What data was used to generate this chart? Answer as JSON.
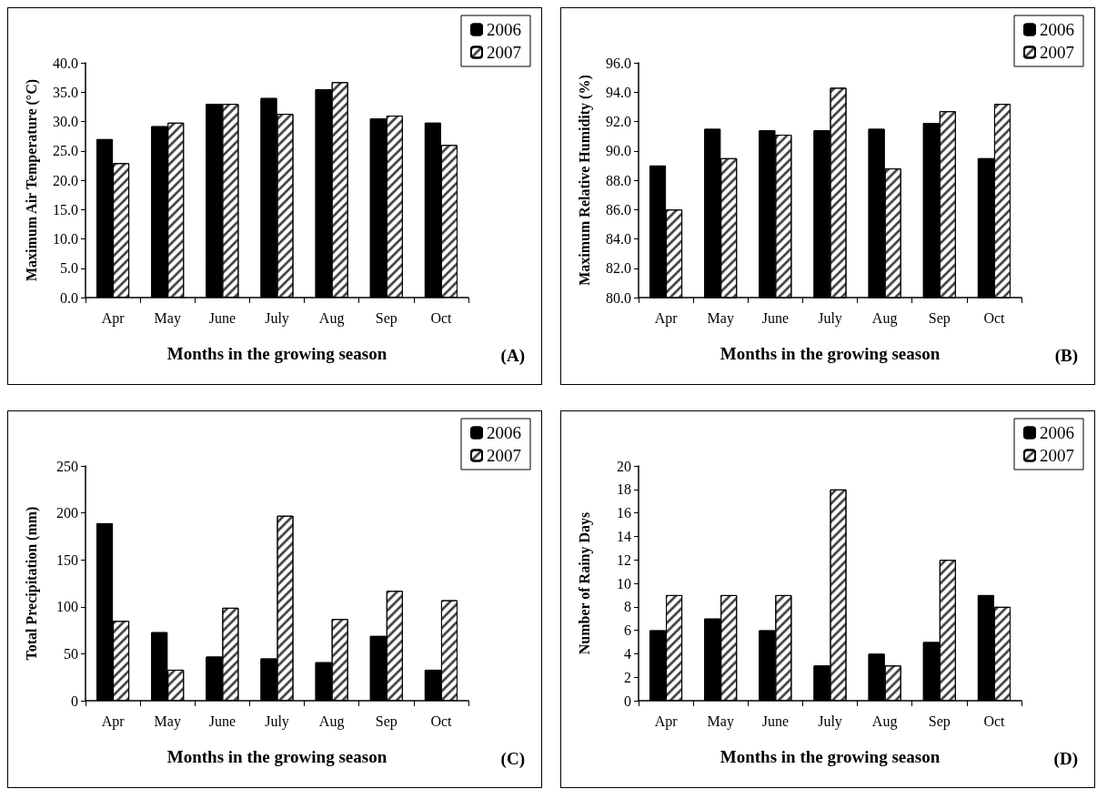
{
  "chart_data": [
    {
      "type": "bar",
      "ylabel": "Maximum Air Temperature (°C)",
      "xlabel": "Months in the growing season",
      "annotations": [
        "(A)"
      ],
      "categories": [
        "Apr",
        "May",
        "June",
        "July",
        "Aug",
        "Sep",
        "Oct"
      ],
      "legend": "top right",
      "grid": false,
      "series": [
        {
          "name": "2006",
          "color": "#000000",
          "values": [
            27.0,
            29.2,
            33.0,
            34.0,
            35.5,
            30.5,
            29.8
          ]
        },
        {
          "name": "2007",
          "color": "#ffffff",
          "values": [
            22.9,
            29.8,
            33.0,
            31.3,
            36.7,
            31.0,
            26.0
          ]
        }
      ],
      "ylim": [
        0,
        40
      ],
      "yticks": [
        {
          "value": 0,
          "label": "0.0"
        },
        {
          "value": 5,
          "label": "5.0"
        },
        {
          "value": 10,
          "label": "10.0"
        },
        {
          "value": 15,
          "label": "15.0"
        },
        {
          "value": 20,
          "label": "20.0"
        },
        {
          "value": 25,
          "label": "25.0"
        },
        {
          "value": 30,
          "label": "30.0"
        },
        {
          "value": 35,
          "label": "35.0"
        },
        {
          "value": 40,
          "label": "40.0"
        }
      ]
    },
    {
      "type": "bar",
      "ylabel": "Maximum Relative Humidity (%)",
      "xlabel": "Months in the growing season",
      "annotations": [
        "(B)"
      ],
      "categories": [
        "Apr",
        "May",
        "June",
        "July",
        "Aug",
        "Sep",
        "Oct"
      ],
      "legend": "top right",
      "grid": false,
      "series": [
        {
          "name": "2006",
          "color": "#000000",
          "values": [
            89.0,
            91.5,
            91.4,
            91.4,
            91.5,
            91.9,
            89.5
          ]
        },
        {
          "name": "2007",
          "color": "#ffffff",
          "values": [
            86.0,
            89.5,
            91.1,
            94.3,
            88.8,
            92.7,
            93.2
          ]
        }
      ],
      "ylim": [
        80,
        96
      ],
      "yticks": [
        {
          "value": 80,
          "label": "80.0"
        },
        {
          "value": 82,
          "label": "82.0"
        },
        {
          "value": 84,
          "label": "84.0"
        },
        {
          "value": 86,
          "label": "86.0"
        },
        {
          "value": 88,
          "label": "88.0"
        },
        {
          "value": 90,
          "label": "90.0"
        },
        {
          "value": 92,
          "label": "92.0"
        },
        {
          "value": 94,
          "label": "94.0"
        },
        {
          "value": 96,
          "label": "96.0"
        }
      ]
    },
    {
      "type": "bar",
      "ylabel": "Total Precipitation (mm)",
      "xlabel": "Months in the growing season",
      "annotations": [
        "(C)"
      ],
      "categories": [
        "Apr",
        "May",
        "June",
        "July",
        "Aug",
        "Sep",
        "Oct"
      ],
      "legend": "top right",
      "grid": false,
      "series": [
        {
          "name": "2006",
          "color": "#000000",
          "values": [
            189,
            73,
            47,
            45,
            41,
            69,
            33
          ]
        },
        {
          "name": "2007",
          "color": "#ffffff",
          "values": [
            85,
            33,
            99,
            197,
            87,
            117,
            107
          ]
        }
      ],
      "ylim": [
        0,
        250
      ],
      "yticks": [
        0,
        50,
        100,
        150,
        200,
        250
      ]
    },
    {
      "type": "bar",
      "ylabel": "Number of Rainy Days",
      "xlabel": "Months in the growing season",
      "annotations": [
        "(D)"
      ],
      "categories": [
        "Apr",
        "May",
        "June",
        "July",
        "Aug",
        "Sep",
        "Oct"
      ],
      "legend": "top right",
      "grid": false,
      "series": [
        {
          "name": "2006",
          "color": "#000000",
          "values": [
            6,
            7,
            6,
            3,
            4,
            5,
            9
          ]
        },
        {
          "name": "2007",
          "color": "#ffffff",
          "values": [
            9,
            9,
            9,
            18,
            3,
            12,
            8
          ]
        }
      ],
      "ylim": [
        0,
        20
      ],
      "yticks": [
        0,
        2,
        4,
        6,
        8,
        10,
        12,
        14,
        16,
        18,
        20
      ]
    }
  ]
}
